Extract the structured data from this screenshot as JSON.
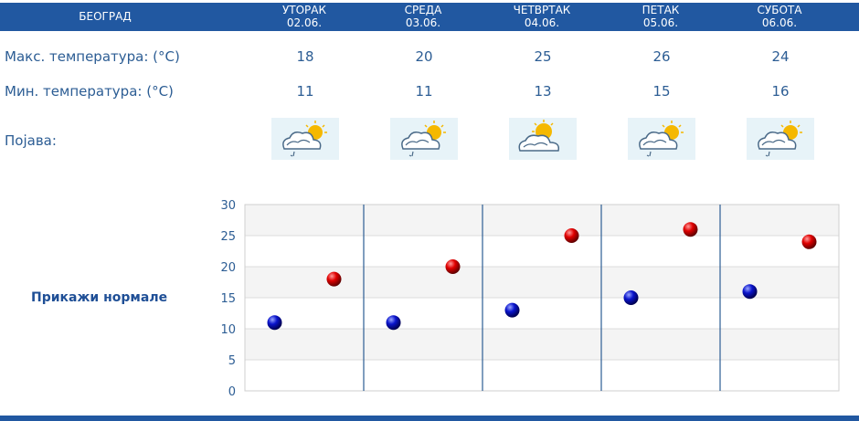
{
  "header": {
    "city": "БЕОГРАД",
    "days": [
      {
        "name": "УТОРАК",
        "date": "02.06."
      },
      {
        "name": "СРЕДА",
        "date": "03.06."
      },
      {
        "name": "ЧЕТВРТАК",
        "date": "04.06."
      },
      {
        "name": "ПЕТАК",
        "date": "05.06."
      },
      {
        "name": "СУБОТА",
        "date": "06.06."
      }
    ]
  },
  "rows": {
    "max_label": "Макс. температура: (°C)",
    "min_label": "Мин. температура: (°C)",
    "phenomenon_label": "Појава:",
    "max": [
      "18",
      "20",
      "25",
      "26",
      "24"
    ],
    "min": [
      "11",
      "11",
      "13",
      "15",
      "16"
    ]
  },
  "icons": [
    "cloud-sun-rain-icon",
    "cloud-sun-rain-icon",
    "sun-cloud-icon",
    "cloud-sun-rain-icon",
    "cloud-sun-rain-icon"
  ],
  "normals_link": "Прикажи нормале",
  "colors": {
    "header": "#2158a1",
    "text": "#2c5d94",
    "max_marker": "#cc0000",
    "min_marker": "#0011bb"
  },
  "chart_data": {
    "type": "scatter",
    "categories": [
      "02.06.",
      "03.06.",
      "04.06.",
      "05.06.",
      "06.06."
    ],
    "series": [
      {
        "values": [
          11,
          11,
          13,
          15,
          16
        ]
      },
      {
        "values": [
          18,
          20,
          25,
          26,
          24
        ]
      }
    ],
    "ylim": [
      0,
      30
    ],
    "yticks": [
      "0",
      "5",
      "10",
      "15",
      "20",
      "25",
      "30"
    ],
    "grid": true
  }
}
